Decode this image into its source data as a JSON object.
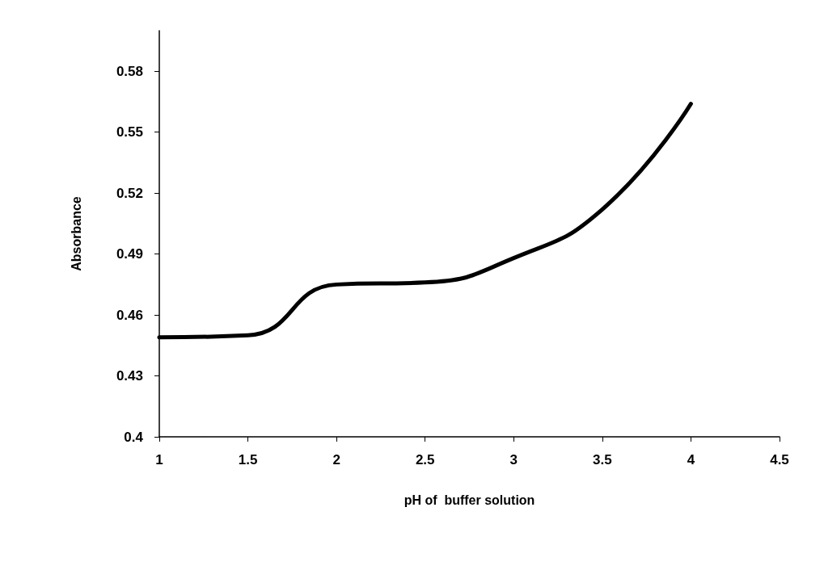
{
  "chart_data": {
    "type": "line",
    "xlabel": "pH of  buffer solution",
    "ylabel": "Absorbance",
    "x": [
      1,
      1.5,
      2,
      2.5,
      3,
      3.5,
      4
    ],
    "series": [
      {
        "color": "#000000",
        "values": [
          0.449,
          0.45,
          0.475,
          0.476,
          0.488,
          0.512,
          0.564
        ]
      }
    ],
    "xlim": [
      1,
      4.5
    ],
    "xticks": [
      1,
      1.5,
      2,
      2.5,
      3,
      3.5,
      4,
      4.5
    ],
    "ylim": [
      0.4,
      0.6
    ],
    "yticks": [
      0.4,
      0.43,
      0.46,
      0.49,
      0.52,
      0.55,
      0.58
    ],
    "grid": false,
    "marker": "none",
    "line_style": "solid"
  }
}
